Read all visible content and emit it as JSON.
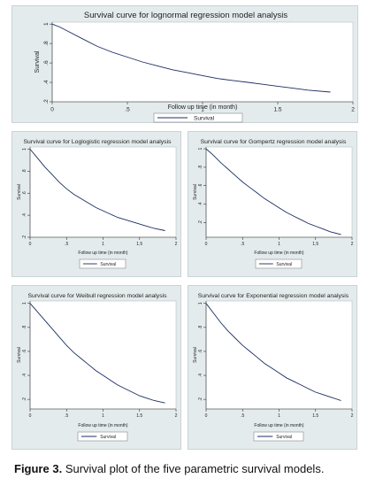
{
  "colors": {
    "panel_bg": "#e4ebec",
    "plot_bg": "#ffffff",
    "line": "#1a2d63",
    "axis": "#333333",
    "text": "#222222"
  },
  "caption": {
    "label": "Figure 3.",
    "text": "Survival plot of the five parametric survival models."
  },
  "chart_data": [
    {
      "type": "line",
      "title": "Survival curve for lognormal regression model analysis",
      "xlabel": "Follow up time (in month)",
      "ylabel": "Survival",
      "xlim": [
        0,
        2
      ],
      "ylim": [
        0.2,
        1.02
      ],
      "xticks": [
        "0",
        ".5",
        "1",
        "1.5",
        "2"
      ],
      "xtick_values": [
        0,
        0.5,
        1,
        1.5,
        2
      ],
      "yticks": [
        ".2",
        ".4",
        ".6",
        ".8",
        "1"
      ],
      "ytick_values": [
        0.2,
        0.4,
        0.6,
        0.8,
        1
      ],
      "legend": "bottom",
      "series": [
        {
          "name": "Survival",
          "x": [
            0,
            0.05,
            0.1,
            0.2,
            0.3,
            0.4,
            0.5,
            0.6,
            0.7,
            0.8,
            0.9,
            1.0,
            1.1,
            1.2,
            1.3,
            1.4,
            1.5,
            1.6,
            1.7,
            1.85
          ],
          "y": [
            1.0,
            0.97,
            0.93,
            0.85,
            0.77,
            0.71,
            0.66,
            0.61,
            0.57,
            0.53,
            0.5,
            0.47,
            0.44,
            0.42,
            0.4,
            0.38,
            0.36,
            0.34,
            0.32,
            0.3
          ]
        }
      ]
    },
    {
      "type": "line",
      "title": "Survival curve for Loglogistic regression model analysis",
      "xlabel": "Follow up time (in month)",
      "ylabel": "Survival",
      "xlim": [
        0,
        2
      ],
      "ylim": [
        0.2,
        1.02
      ],
      "xticks": [
        "0",
        ".5",
        "1",
        "1.5",
        "2"
      ],
      "xtick_values": [
        0,
        0.5,
        1,
        1.5,
        2
      ],
      "yticks": [
        ".2",
        ".4",
        ".6",
        ".8",
        "1"
      ],
      "ytick_values": [
        0.2,
        0.4,
        0.6,
        0.8,
        1
      ],
      "legend": "bottom",
      "series": [
        {
          "name": "Survival",
          "x": [
            0,
            0.1,
            0.2,
            0.3,
            0.4,
            0.5,
            0.6,
            0.7,
            0.8,
            0.9,
            1.0,
            1.1,
            1.2,
            1.3,
            1.4,
            1.5,
            1.6,
            1.7,
            1.85
          ],
          "y": [
            1.0,
            0.92,
            0.84,
            0.77,
            0.7,
            0.64,
            0.59,
            0.55,
            0.51,
            0.47,
            0.44,
            0.41,
            0.38,
            0.36,
            0.34,
            0.32,
            0.3,
            0.28,
            0.26
          ]
        }
      ]
    },
    {
      "type": "line",
      "title": "Survival curve for Gompertz regression model analysis",
      "xlabel": "Follow up time (in month)",
      "ylabel": "Survival",
      "xlim": [
        0,
        2
      ],
      "ylim": [
        0.04,
        1.02
      ],
      "xticks": [
        "0",
        ".5",
        "1",
        "1.5",
        "2"
      ],
      "xtick_values": [
        0,
        0.5,
        1,
        1.5,
        2
      ],
      "yticks": [
        ".2",
        ".4",
        ".6",
        ".8",
        "1"
      ],
      "ytick_values": [
        0.2,
        0.4,
        0.6,
        0.8,
        1
      ],
      "legend": "bottom",
      "series": [
        {
          "name": "Survival",
          "x": [
            0,
            0.1,
            0.2,
            0.3,
            0.4,
            0.5,
            0.6,
            0.7,
            0.8,
            0.9,
            1.0,
            1.1,
            1.2,
            1.3,
            1.4,
            1.5,
            1.6,
            1.7,
            1.85
          ],
          "y": [
            1.0,
            0.93,
            0.85,
            0.78,
            0.71,
            0.64,
            0.58,
            0.52,
            0.46,
            0.41,
            0.36,
            0.31,
            0.27,
            0.23,
            0.19,
            0.16,
            0.13,
            0.1,
            0.07
          ]
        }
      ]
    },
    {
      "type": "line",
      "title": "Survival curve for Weibull regression model analysis",
      "xlabel": "Follow up time (in month)",
      "ylabel": "Survival",
      "xlim": [
        0,
        2
      ],
      "ylim": [
        0.12,
        1.02
      ],
      "xticks": [
        "0",
        ".5",
        "1",
        "1.5",
        "2"
      ],
      "xtick_values": [
        0,
        0.5,
        1,
        1.5,
        2
      ],
      "yticks": [
        ".2",
        ".4",
        ".6",
        ".8",
        "1"
      ],
      "ytick_values": [
        0.2,
        0.4,
        0.6,
        0.8,
        1
      ],
      "legend": "bottom",
      "series": [
        {
          "name": "Survival",
          "x": [
            0,
            0.1,
            0.2,
            0.3,
            0.4,
            0.5,
            0.6,
            0.7,
            0.8,
            0.9,
            1.0,
            1.1,
            1.2,
            1.3,
            1.4,
            1.5,
            1.6,
            1.7,
            1.85
          ],
          "y": [
            1.0,
            0.93,
            0.86,
            0.79,
            0.72,
            0.65,
            0.59,
            0.54,
            0.49,
            0.44,
            0.4,
            0.36,
            0.32,
            0.29,
            0.26,
            0.23,
            0.21,
            0.19,
            0.17
          ]
        }
      ]
    },
    {
      "type": "line",
      "title": "Survival curve for Exponential regression model analysis",
      "xlabel": "Follow up time (in month)",
      "ylabel": "Survival",
      "xlim": [
        0,
        2
      ],
      "ylim": [
        0.12,
        1.02
      ],
      "xticks": [
        "0",
        ".5",
        "1",
        "1.5",
        "2"
      ],
      "xtick_values": [
        0,
        0.5,
        1,
        1.5,
        2
      ],
      "yticks": [
        ".2",
        ".4",
        ".6",
        ".8",
        "1"
      ],
      "ytick_values": [
        0.2,
        0.4,
        0.6,
        0.8,
        1
      ],
      "legend": "bottom",
      "series": [
        {
          "name": "Survival",
          "x": [
            0,
            0.1,
            0.2,
            0.3,
            0.4,
            0.5,
            0.6,
            0.7,
            0.8,
            0.9,
            1.0,
            1.1,
            1.2,
            1.3,
            1.4,
            1.5,
            1.6,
            1.7,
            1.85
          ],
          "y": [
            1.0,
            0.92,
            0.84,
            0.77,
            0.71,
            0.65,
            0.6,
            0.55,
            0.5,
            0.46,
            0.42,
            0.38,
            0.35,
            0.32,
            0.29,
            0.26,
            0.24,
            0.22,
            0.19
          ]
        }
      ]
    }
  ]
}
